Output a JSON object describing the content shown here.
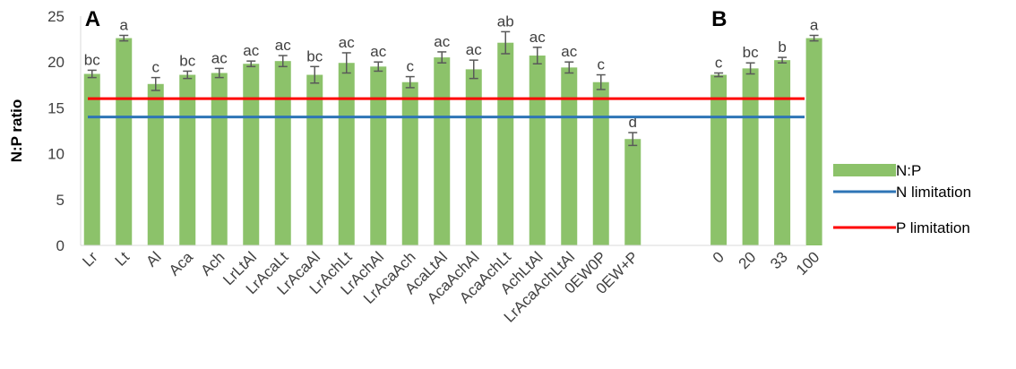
{
  "chart_data": {
    "type": "bar",
    "ylabel": "N:P ratio",
    "ylim": [
      0,
      25
    ],
    "yticks": [
      0,
      5,
      10,
      15,
      20,
      25
    ],
    "grid": false,
    "legend_position": "right",
    "colors": {
      "bar": "#8cc26a",
      "n_limitation": "#2e75b6",
      "p_limitation": "#ff0000",
      "error_bar": "#595959",
      "axis": "#d9d9d9"
    },
    "legend": [
      {
        "key": "bar",
        "label": "N:P"
      },
      {
        "key": "n_limitation",
        "label": "N limitation"
      },
      {
        "key": "p_limitation",
        "label": "P limitation"
      }
    ],
    "panels": [
      {
        "label": "A",
        "categories": [
          "Lr",
          "Lt",
          "Al",
          "Aca",
          "Ach",
          "LrLtAl",
          "LrAcaLt",
          "LrAcaAl",
          "LrAchLt",
          "LrAchAl",
          "LrAcaAch",
          "AcaLtAl",
          "AcaAchAl",
          "AcaAchLt",
          "AchLtAl",
          "LrAcaAchLtAl",
          "0EW0P",
          "0EW+P"
        ],
        "values": [
          18.7,
          22.6,
          17.6,
          18.6,
          18.8,
          19.8,
          20.1,
          18.6,
          19.9,
          19.5,
          17.8,
          20.5,
          19.2,
          22.1,
          20.7,
          19.4,
          17.8,
          11.6
        ],
        "errors": [
          0.4,
          0.3,
          0.7,
          0.4,
          0.5,
          0.3,
          0.6,
          0.9,
          1.1,
          0.5,
          0.6,
          0.6,
          1.0,
          1.2,
          0.9,
          0.6,
          0.8,
          0.7
        ],
        "letters": [
          "bc",
          "a",
          "c",
          "bc",
          "ac",
          "ac",
          "ac",
          "bc",
          "ac",
          "ac",
          "c",
          "ac",
          "ac",
          "ab",
          "ac",
          "ac",
          "c",
          "d"
        ]
      },
      {
        "label": "B",
        "categories": [
          "0",
          "20",
          "33",
          "100"
        ],
        "values": [
          18.6,
          19.3,
          20.2,
          22.6
        ],
        "errors": [
          0.2,
          0.6,
          0.3,
          0.3
        ],
        "letters": [
          "c",
          "bc",
          "b",
          "a"
        ]
      }
    ],
    "reference_lines": [
      {
        "name": "N limitation",
        "y": 14
      },
      {
        "name": "P limitation",
        "y": 16
      }
    ]
  }
}
